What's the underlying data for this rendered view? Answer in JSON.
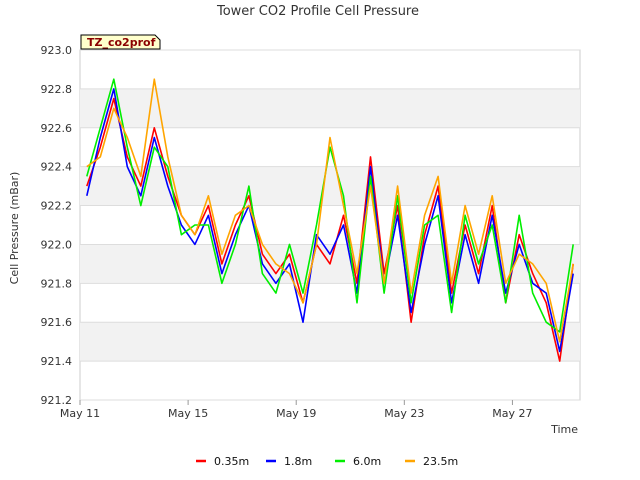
{
  "chart_data": {
    "type": "line",
    "title": "Tower CO2 Profile Cell Pressure",
    "xlabel": "Time",
    "ylabel": "Cell Pressure (mBar)",
    "badge": "TZ_co2prof",
    "ylim": [
      921.2,
      923.0
    ],
    "yticks": [
      "921.2",
      "921.4",
      "921.6",
      "921.8",
      "922.0",
      "922.2",
      "922.4",
      "922.6",
      "922.8",
      "923.0"
    ],
    "xlim": [
      "2024-05-11",
      "2024-05-29T12:00"
    ],
    "xticks": [
      {
        "date": "2024-05-11",
        "label": "May 11"
      },
      {
        "date": "2024-05-15",
        "label": "May 15"
      },
      {
        "date": "2024-05-19",
        "label": "May 19"
      },
      {
        "date": "2024-05-23",
        "label": "May 23"
      },
      {
        "date": "2024-05-27",
        "label": "May 27"
      }
    ],
    "grid": true,
    "legend_position": "bottom",
    "x": [
      "2024-05-11T06:00",
      "2024-05-11T18:00",
      "2024-05-12T06:00",
      "2024-05-12T18:00",
      "2024-05-13T06:00",
      "2024-05-13T18:00",
      "2024-05-14T06:00",
      "2024-05-14T18:00",
      "2024-05-15T06:00",
      "2024-05-15T18:00",
      "2024-05-16T06:00",
      "2024-05-16T18:00",
      "2024-05-17T06:00",
      "2024-05-17T18:00",
      "2024-05-18T06:00",
      "2024-05-18T18:00",
      "2024-05-19T06:00",
      "2024-05-19T18:00",
      "2024-05-20T06:00",
      "2024-05-20T18:00",
      "2024-05-21T06:00",
      "2024-05-21T18:00",
      "2024-05-22T06:00",
      "2024-05-22T18:00",
      "2024-05-23T06:00",
      "2024-05-23T18:00",
      "2024-05-24T06:00",
      "2024-05-24T18:00",
      "2024-05-25T06:00",
      "2024-05-25T18:00",
      "2024-05-26T06:00",
      "2024-05-26T18:00",
      "2024-05-27T06:00",
      "2024-05-27T18:00",
      "2024-05-28T06:00",
      "2024-05-28T18:00",
      "2024-05-29T06:00"
    ],
    "series": [
      {
        "name": "0.35m",
        "color": "#ff0000",
        "values": [
          922.3,
          922.5,
          922.75,
          922.45,
          922.3,
          922.6,
          922.35,
          922.15,
          922.05,
          922.2,
          921.9,
          922.1,
          922.25,
          921.95,
          921.85,
          921.95,
          921.7,
          922.0,
          921.9,
          922.15,
          921.8,
          922.45,
          921.85,
          922.2,
          921.6,
          922.05,
          922.3,
          921.75,
          922.1,
          921.85,
          922.2,
          921.7,
          922.05,
          921.85,
          921.7,
          921.4,
          921.9
        ]
      },
      {
        "name": "1.8m",
        "color": "#0000ff",
        "values": [
          922.25,
          922.55,
          922.8,
          922.4,
          922.25,
          922.55,
          922.3,
          922.1,
          922.0,
          922.15,
          921.85,
          922.05,
          922.2,
          921.9,
          921.8,
          921.9,
          921.6,
          922.05,
          921.95,
          922.1,
          921.75,
          922.4,
          921.8,
          922.15,
          921.65,
          922.0,
          922.25,
          921.7,
          922.05,
          921.8,
          922.15,
          921.75,
          922.0,
          921.8,
          921.75,
          921.45,
          921.85
        ]
      },
      {
        "name": "6.0m",
        "color": "#00ee00",
        "values": [
          922.35,
          922.6,
          922.85,
          922.5,
          922.2,
          922.5,
          922.4,
          922.05,
          922.1,
          922.1,
          921.8,
          922.0,
          922.3,
          921.85,
          921.75,
          922.0,
          921.75,
          922.1,
          922.5,
          922.25,
          921.7,
          922.35,
          921.75,
          922.25,
          921.7,
          922.1,
          922.15,
          921.65,
          922.15,
          921.9,
          922.1,
          921.7,
          922.15,
          921.75,
          921.6,
          921.55,
          922.0
        ]
      },
      {
        "name": "23.5m",
        "color": "#ffa500",
        "values": [
          922.4,
          922.45,
          922.7,
          922.55,
          922.35,
          922.85,
          922.45,
          922.15,
          922.05,
          922.25,
          921.95,
          922.15,
          922.2,
          922.0,
          921.9,
          921.85,
          921.7,
          922.0,
          922.55,
          922.2,
          921.85,
          922.3,
          921.8,
          922.3,
          921.75,
          922.15,
          922.35,
          921.8,
          922.2,
          921.95,
          922.25,
          921.8,
          921.95,
          921.9,
          921.8,
          921.5,
          921.9
        ]
      }
    ]
  }
}
